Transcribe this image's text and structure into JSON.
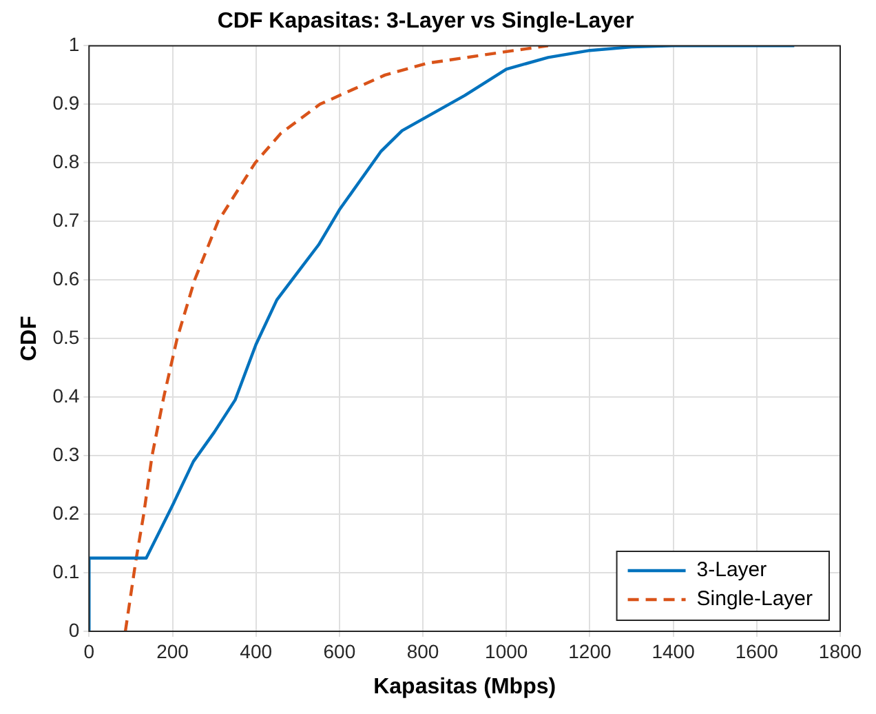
{
  "chart_data": {
    "type": "line",
    "title": "CDF Kapasitas: 3-Layer vs Single-Layer",
    "xlabel": "Kapasitas (Mbps)",
    "ylabel": "CDF",
    "xlim": [
      0,
      1800
    ],
    "xticks": [
      0,
      200,
      400,
      600,
      800,
      1000,
      1200,
      1400,
      1600,
      1800
    ],
    "ylim": [
      0,
      1
    ],
    "yticks": [
      0,
      0.1,
      0.2,
      0.3,
      0.4,
      0.5,
      0.6,
      0.7,
      0.8,
      0.9,
      1
    ],
    "grid": true,
    "legend": "bottom right",
    "marker": "none",
    "series": [
      {
        "name": "3-Layer",
        "color": "#0072bd",
        "line_style": "solid",
        "x": [
          0,
          0,
          137,
          200,
          250,
          300,
          350,
          400,
          450,
          500,
          550,
          600,
          650,
          700,
          750,
          800,
          900,
          1000,
          1100,
          1200,
          1300,
          1400,
          1690
        ],
        "values": [
          0,
          0.125,
          0.125,
          0.215,
          0.29,
          0.34,
          0.395,
          0.49,
          0.566,
          0.613,
          0.66,
          0.72,
          0.77,
          0.82,
          0.855,
          0.875,
          0.915,
          0.96,
          0.98,
          0.992,
          0.998,
          1,
          1
        ]
      },
      {
        "name": "Single-Layer",
        "color": "#d95319",
        "line_style": "dashed",
        "x": [
          87,
          112,
          131,
          151,
          179,
          211,
          253,
          309,
          398,
          459,
          553,
          709,
          809,
          1000,
          1100
        ],
        "values": [
          0,
          0.12,
          0.2,
          0.3,
          0.4,
          0.5,
          0.6,
          0.7,
          0.8,
          0.85,
          0.9,
          0.95,
          0.97,
          0.99,
          1
        ]
      }
    ]
  }
}
